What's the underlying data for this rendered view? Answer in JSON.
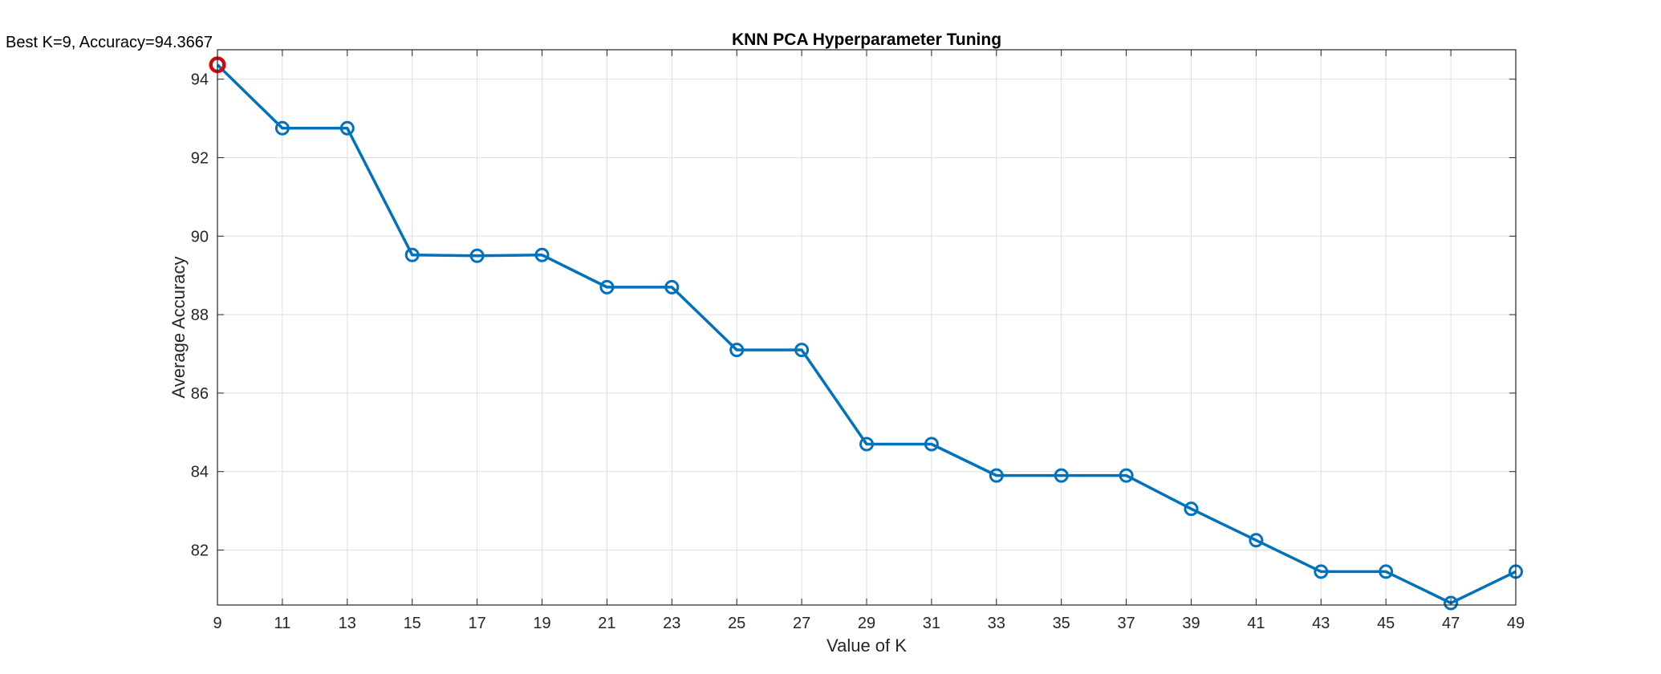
{
  "chart_data": {
    "type": "line",
    "title": "KNN PCA Hyperparameter Tuning",
    "xlabel": "Value of K",
    "ylabel": "Average Accuracy",
    "x": [
      9,
      11,
      13,
      15,
      17,
      19,
      21,
      23,
      25,
      27,
      29,
      31,
      33,
      35,
      37,
      39,
      41,
      43,
      45,
      47,
      49
    ],
    "series": [
      {
        "values": [
          94.3667,
          92.75,
          92.75,
          89.52,
          89.5,
          89.52,
          88.7,
          88.7,
          87.1,
          87.1,
          84.7,
          84.7,
          83.9,
          83.9,
          83.9,
          83.05,
          82.25,
          81.45,
          81.45,
          80.65,
          81.45
        ],
        "color": "#0072BD",
        "marker": "circle"
      }
    ],
    "xlim": [
      9,
      49
    ],
    "ylim": [
      80.6,
      94.75
    ],
    "xticks": [
      9,
      11,
      13,
      15,
      17,
      19,
      21,
      23,
      25,
      27,
      29,
      31,
      33,
      35,
      37,
      39,
      41,
      43,
      45,
      47,
      49
    ],
    "yticks": [
      82,
      84,
      86,
      88,
      90,
      92,
      94
    ],
    "grid": true,
    "highlight": {
      "x": 9,
      "y": 94.3667,
      "color": "#E60000"
    },
    "annotation": "Best K=9, Accuracy=94.3667"
  }
}
